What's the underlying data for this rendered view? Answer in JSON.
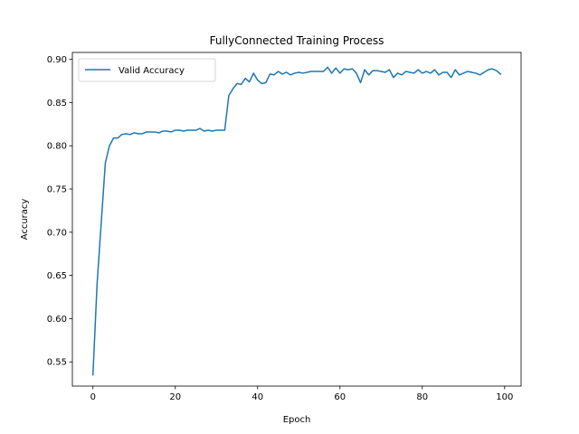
{
  "chart_data": {
    "type": "line",
    "title": "FullyConnected Training Process",
    "xlabel": "Epoch",
    "ylabel": "Accuracy",
    "xlim": [
      -5,
      104
    ],
    "ylim": [
      0.522,
      0.908
    ],
    "xticks": [
      0,
      20,
      40,
      60,
      80,
      100
    ],
    "yticks": [
      0.55,
      0.6,
      0.65,
      0.7,
      0.75,
      0.8,
      0.85,
      0.9
    ],
    "ytick_labels": [
      "0.55",
      "0.60",
      "0.65",
      "0.70",
      "0.75",
      "0.80",
      "0.85",
      "0.90"
    ],
    "grid": false,
    "legend": "top-left",
    "series": [
      {
        "name": "Valid Accuracy",
        "color": "#1f77b4",
        "x": [
          0,
          1,
          2,
          3,
          4,
          5,
          6,
          7,
          8,
          9,
          10,
          11,
          12,
          13,
          14,
          15,
          16,
          17,
          18,
          19,
          20,
          21,
          22,
          23,
          24,
          25,
          26,
          27,
          28,
          29,
          30,
          31,
          32,
          33,
          34,
          35,
          36,
          37,
          38,
          39,
          40,
          41,
          42,
          43,
          44,
          45,
          46,
          47,
          48,
          49,
          50,
          51,
          52,
          53,
          54,
          55,
          56,
          57,
          58,
          59,
          60,
          61,
          62,
          63,
          64,
          65,
          66,
          67,
          68,
          69,
          70,
          71,
          72,
          73,
          74,
          75,
          76,
          77,
          78,
          79,
          80,
          81,
          82,
          83,
          84,
          85,
          86,
          87,
          88,
          89,
          90,
          91,
          92,
          93,
          94,
          95,
          96,
          97,
          98,
          99
        ],
        "values": [
          0.535,
          0.64,
          0.71,
          0.78,
          0.8,
          0.809,
          0.809,
          0.813,
          0.814,
          0.813,
          0.815,
          0.814,
          0.814,
          0.816,
          0.816,
          0.816,
          0.815,
          0.817,
          0.817,
          0.816,
          0.818,
          0.818,
          0.817,
          0.818,
          0.818,
          0.818,
          0.82,
          0.817,
          0.818,
          0.817,
          0.818,
          0.818,
          0.818,
          0.858,
          0.866,
          0.872,
          0.871,
          0.878,
          0.874,
          0.884,
          0.876,
          0.872,
          0.873,
          0.883,
          0.882,
          0.886,
          0.883,
          0.885,
          0.882,
          0.884,
          0.885,
          0.884,
          0.885,
          0.886,
          0.886,
          0.886,
          0.886,
          0.891,
          0.884,
          0.89,
          0.884,
          0.889,
          0.888,
          0.889,
          0.884,
          0.873,
          0.888,
          0.882,
          0.887,
          0.887,
          0.886,
          0.885,
          0.888,
          0.879,
          0.884,
          0.882,
          0.886,
          0.885,
          0.884,
          0.888,
          0.884,
          0.886,
          0.884,
          0.888,
          0.882,
          0.885,
          0.885,
          0.879,
          0.888,
          0.882,
          0.884,
          0.886,
          0.885,
          0.884,
          0.882,
          0.885,
          0.888,
          0.889,
          0.887,
          0.883
        ]
      }
    ]
  }
}
